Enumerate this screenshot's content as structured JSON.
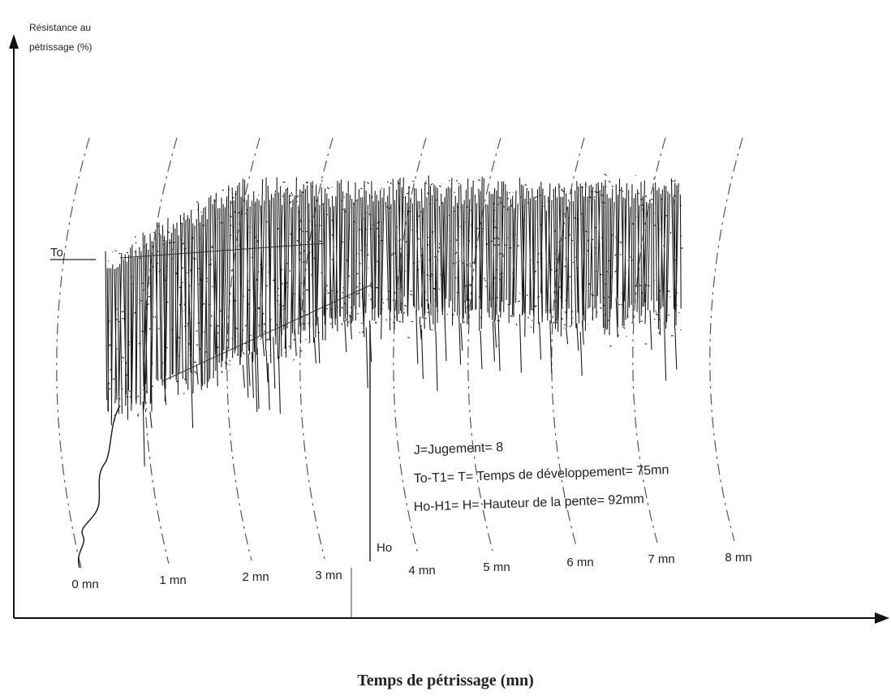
{
  "y_axis": {
    "label_lines": [
      "Résistance au",
      "pétrissage (%)"
    ]
  },
  "x_axis": {
    "title": "Temps de pétrissage (mn)",
    "time_labels": [
      "0 mn",
      "1 mn",
      "2 mn",
      "3 mn",
      "4 mn",
      "5 mn",
      "6 mn",
      "7 mn",
      "8 mn"
    ]
  },
  "markers": {
    "to": "To",
    "ho": "Ho"
  },
  "annotations": [
    "J=Jugement= 8",
    "To-T1= T= Temps de développement= 75mn",
    "Ho-H1= H= Hauteur de la pente= 92mm"
  ]
}
